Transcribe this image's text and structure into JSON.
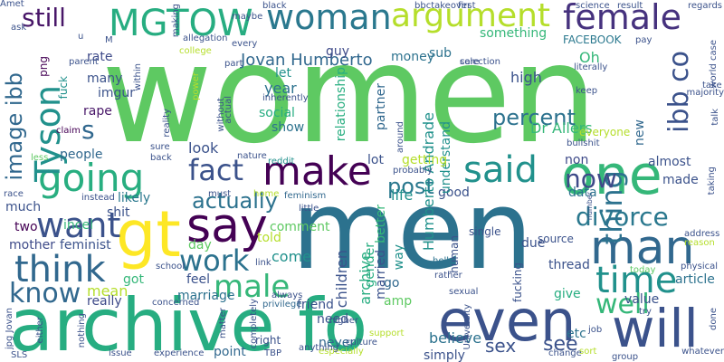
{
  "words": [
    {
      "text": "women",
      "color": "#5ec962"
    },
    {
      "text": "men",
      "color": "#2c728e"
    },
    {
      "text": "archive fo",
      "color": "#27ad81"
    },
    {
      "text": "gt",
      "color": "#fde725"
    },
    {
      "text": "even",
      "color": "#3b528b"
    },
    {
      "text": "one",
      "color": "#35b779"
    },
    {
      "text": "will",
      "color": "#3b528b"
    },
    {
      "text": "said",
      "color": "#21918c"
    },
    {
      "text": "man",
      "color": "#31688e"
    },
    {
      "text": "say",
      "color": "#440154"
    },
    {
      "text": "going",
      "color": "#28ae80"
    },
    {
      "text": "make",
      "color": "#440154"
    },
    {
      "text": "fact",
      "color": "#3b528b"
    },
    {
      "text": "think",
      "color": "#31688e"
    },
    {
      "text": "want",
      "color": "#3b528b"
    },
    {
      "text": "time",
      "color": "#21918c"
    },
    {
      "text": "work",
      "color": "#2c728e"
    },
    {
      "text": "male",
      "color": "#35b779"
    },
    {
      "text": "well",
      "color": "#35b779"
    },
    {
      "text": "know",
      "color": "#31688e"
    },
    {
      "text": "MGTOW",
      "color": "#27ad81"
    },
    {
      "text": "woman",
      "color": "#2a788e"
    },
    {
      "text": "argument",
      "color": "#b5de2b"
    },
    {
      "text": "female",
      "color": "#46327e"
    },
    {
      "text": "divorce",
      "color": "#2a788e"
    },
    {
      "text": "thing",
      "color": "#2c728e"
    },
    {
      "text": "Tyson",
      "color": "#21918c"
    },
    {
      "text": "image ibb",
      "color": "#31688e"
    },
    {
      "text": "ibb co",
      "color": "#3b528b"
    },
    {
      "text": "still",
      "color": "#481668"
    },
    {
      "text": "now",
      "color": "#3e4a89"
    },
    {
      "text": "post",
      "color": "#2a788e"
    },
    {
      "text": "actually",
      "color": "#2c728e"
    },
    {
      "text": "percent",
      "color": "#2c728e"
    },
    {
      "text": "see",
      "color": "#3b528b"
    },
    {
      "text": "sex",
      "color": "#3b528b"
    },
    {
      "text": "s",
      "color": "#31688e"
    },
    {
      "text": "Jovan Humberto",
      "color": "#31688e"
    },
    {
      "text": "money",
      "color": "#2c728e"
    },
    {
      "text": "something",
      "color": "#35b779"
    },
    {
      "text": "FACEBOOK",
      "color": "#2a788e"
    },
    {
      "text": "relationship",
      "color": "#28ae80"
    },
    {
      "text": "partner",
      "color": "#31688e"
    },
    {
      "text": "guy",
      "color": "#3e4a89"
    },
    {
      "text": "sub",
      "color": "#2c728e"
    },
    {
      "text": "Oh",
      "color": "#35b779"
    },
    {
      "text": "high",
      "color": "#3b528b"
    },
    {
      "text": "year",
      "color": "#2c728e"
    },
    {
      "text": "let",
      "color": "#21918c"
    },
    {
      "text": "social",
      "color": "#27ad81"
    },
    {
      "text": "show",
      "color": "#2c728e"
    },
    {
      "text": "look",
      "color": "#3b528b"
    },
    {
      "text": "rate",
      "color": "#3e4a89"
    },
    {
      "text": "many",
      "color": "#3b528b"
    },
    {
      "text": "imgur",
      "color": "#3b528b"
    },
    {
      "text": "rape",
      "color": "#481668"
    },
    {
      "text": "fuck",
      "color": "#21918c"
    },
    {
      "text": "png",
      "color": "#440154"
    },
    {
      "text": "people",
      "color": "#31688e"
    },
    {
      "text": "likely",
      "color": "#2a788e"
    },
    {
      "text": "shit",
      "color": "#3b528b"
    },
    {
      "text": "incel",
      "color": "#35b779"
    },
    {
      "text": "feminist",
      "color": "#3b528b"
    },
    {
      "text": "mother",
      "color": "#3e4a89"
    },
    {
      "text": "two",
      "color": "#440154"
    },
    {
      "text": "much",
      "color": "#3b528b"
    },
    {
      "text": "day",
      "color": "#5ec962"
    },
    {
      "text": "comment",
      "color": "#5ec962"
    },
    {
      "text": "told",
      "color": "#b5de2b"
    },
    {
      "text": "come",
      "color": "#21918c"
    },
    {
      "text": "feel",
      "color": "#3b528b"
    },
    {
      "text": "got",
      "color": "#35b779"
    },
    {
      "text": "marriage",
      "color": "#2c728e"
    },
    {
      "text": "mean",
      "color": "#b5de2b"
    },
    {
      "text": "really",
      "color": "#3e4a89"
    },
    {
      "text": "friend",
      "color": "#3b528b"
    },
    {
      "text": "need",
      "color": "#3b528b"
    },
    {
      "text": "never",
      "color": "#31688e"
    },
    {
      "text": "point",
      "color": "#31688e"
    },
    {
      "text": "children",
      "color": "#3b528b"
    },
    {
      "text": "archive",
      "color": "#27ad81"
    },
    {
      "text": "better",
      "color": "#35b779"
    },
    {
      "text": "gender",
      "color": "#27ad81"
    },
    {
      "text": "married",
      "color": "#3b528b"
    },
    {
      "text": "way",
      "color": "#21918c"
    },
    {
      "text": "simply",
      "color": "#3b528b"
    },
    {
      "text": "believe",
      "color": "#2c728e"
    },
    {
      "text": "life",
      "color": "#21918c"
    },
    {
      "text": "good",
      "color": "#3b528b"
    },
    {
      "text": "Humberto Andrade",
      "color": "#21918c"
    },
    {
      "text": "understand",
      "color": "#21918c"
    },
    {
      "text": "getting",
      "color": "#b5de2b"
    },
    {
      "text": "lot",
      "color": "#3b528b"
    },
    {
      "text": "non",
      "color": "#3e4a89"
    },
    {
      "text": "almost",
      "color": "#3b528b"
    },
    {
      "text": "made",
      "color": "#3b528b"
    },
    {
      "text": "data",
      "color": "#2c728e"
    },
    {
      "text": "value",
      "color": "#3b528b"
    },
    {
      "text": "article",
      "color": "#2c728e"
    },
    {
      "text": "thread",
      "color": "#3b528b"
    },
    {
      "text": "give",
      "color": "#27ad81"
    },
    {
      "text": "etc",
      "color": "#2c728e"
    },
    {
      "text": "due",
      "color": "#3b528b"
    },
    {
      "text": "go",
      "color": "#31688e"
    },
    {
      "text": "amp",
      "color": "#5ec962"
    },
    {
      "text": "Dr Allers",
      "color": "#35b779"
    },
    {
      "text": "new",
      "color": "#31688e"
    },
    {
      "text": "everyone",
      "color": "#b5de2b"
    },
    {
      "text": "bullshit",
      "color": "#3b528b"
    },
    {
      "text": "claim",
      "color": "#440154"
    },
    {
      "text": "sure",
      "color": "#3b528b"
    },
    {
      "text": "back",
      "color": "#3b528b"
    },
    {
      "text": "reddit",
      "color": "#21918c"
    },
    {
      "text": "nature",
      "color": "#3b528b"
    },
    {
      "text": "less",
      "color": "#5ec962"
    },
    {
      "text": "race",
      "color": "#3b528b"
    },
    {
      "text": "instead",
      "color": "#3b528b"
    },
    {
      "text": "home",
      "color": "#b5de2b"
    },
    {
      "text": "feminism",
      "color": "#31688e"
    },
    {
      "text": "little",
      "color": "#3b528b"
    },
    {
      "text": "must",
      "color": "#3b528b"
    },
    {
      "text": "privilege",
      "color": "#31688e"
    },
    {
      "text": "culture",
      "color": "#3b528b"
    },
    {
      "text": "higher",
      "color": "#3b528b"
    },
    {
      "text": "rather",
      "color": "#3b528b"
    },
    {
      "text": "sexual",
      "color": "#3b528b"
    },
    {
      "text": "single",
      "color": "#3b528b"
    },
    {
      "text": "source",
      "color": "#3b528b"
    },
    {
      "text": "hell",
      "color": "#2c728e"
    },
    {
      "text": "human",
      "color": "#3b528b"
    },
    {
      "text": "fucking",
      "color": "#3b528b"
    },
    {
      "text": "University",
      "color": "#3b528b"
    },
    {
      "text": "support",
      "color": "#b5de2b"
    },
    {
      "text": "especially",
      "color": "#b5de2b"
    },
    {
      "text": "anything",
      "color": "#3b528b"
    },
    {
      "text": "TBP",
      "color": "#3b528b"
    },
    {
      "text": "change",
      "color": "#3b528b"
    },
    {
      "text": "sort",
      "color": "#b5de2b"
    },
    {
      "text": "group",
      "color": "#3b528b"
    },
    {
      "text": "whatever",
      "color": "#3b528b"
    },
    {
      "text": "done",
      "color": "#3b528b"
    },
    {
      "text": "physical",
      "color": "#3b528b"
    },
    {
      "text": "today",
      "color": "#5ec962"
    },
    {
      "text": "address",
      "color": "#3b528b"
    },
    {
      "text": "reason",
      "color": "#b5de2b"
    },
    {
      "text": "taking",
      "color": "#3b528b"
    },
    {
      "text": "majority",
      "color": "#3b528b"
    },
    {
      "text": "take",
      "color": "#3b528b"
    },
    {
      "text": "talk",
      "color": "#3b528b"
    },
    {
      "text": "literally",
      "color": "#3b528b"
    },
    {
      "text": "keep",
      "color": "#3b528b"
    },
    {
      "text": "job",
      "color": "#3b528b"
    },
    {
      "text": "try",
      "color": "#3b528b"
    },
    {
      "text": "issue",
      "color": "#3b528b"
    },
    {
      "text": "experience",
      "color": "#3b528b"
    },
    {
      "text": "matter",
      "color": "#3b528b"
    },
    {
      "text": "completely",
      "color": "#3b528b"
    },
    {
      "text": "concerned",
      "color": "#3b528b"
    },
    {
      "text": "school",
      "color": "#3b528b"
    },
    {
      "text": "link",
      "color": "#3b528b"
    },
    {
      "text": "always",
      "color": "#3b528b"
    },
    {
      "text": "SLS",
      "color": "#3b528b"
    },
    {
      "text": "either",
      "color": "#3b528b"
    },
    {
      "text": "jpg Jovan",
      "color": "#3b528b"
    },
    {
      "text": "nothing",
      "color": "#3b528b"
    },
    {
      "text": "right",
      "color": "#3b528b"
    },
    {
      "text": "u",
      "color": "#3b528b"
    },
    {
      "text": "M",
      "color": "#3b528b"
    },
    {
      "text": "allegation",
      "color": "#3b528b"
    },
    {
      "text": "every",
      "color": "#3b528b"
    },
    {
      "text": "part",
      "color": "#3b528b"
    },
    {
      "text": "ask",
      "color": "#3b528b"
    },
    {
      "text": "parent",
      "color": "#3b528b"
    },
    {
      "text": "college",
      "color": "#b5de2b"
    },
    {
      "text": "power",
      "color": "#b5de2b"
    },
    {
      "text": "reality",
      "color": "#3b528b"
    },
    {
      "text": "without",
      "color": "#3b528b"
    },
    {
      "text": "actual",
      "color": "#3b528b"
    },
    {
      "text": "inherently",
      "color": "#3b528b"
    },
    {
      "text": "around",
      "color": "#3b528b"
    },
    {
      "text": "probably",
      "color": "#3b528b"
    },
    {
      "text": "selection",
      "color": "#3b528b"
    },
    {
      "text": "care",
      "color": "#3b528b"
    },
    {
      "text": "pay",
      "color": "#3b528b"
    },
    {
      "text": "world case",
      "color": "#3b528b"
    },
    {
      "text": "regards",
      "color": "#3b528b"
    },
    {
      "text": "science",
      "color": "#3b528b"
    },
    {
      "text": "result",
      "color": "#3b528b"
    },
    {
      "text": "first",
      "color": "#3b528b"
    },
    {
      "text": "bbctakeover",
      "color": "#3b528b"
    },
    {
      "text": "black",
      "color": "#3b528b"
    },
    {
      "text": "maybe",
      "color": "#3b528b"
    },
    {
      "text": "making",
      "color": "#3b528b"
    },
    {
      "text": "within",
      "color": "#3b528b"
    },
    {
      "text": "number",
      "color": "#3b528b"
    },
    {
      "text": "Amet",
      "color": "#3b528b"
    }
  ]
}
